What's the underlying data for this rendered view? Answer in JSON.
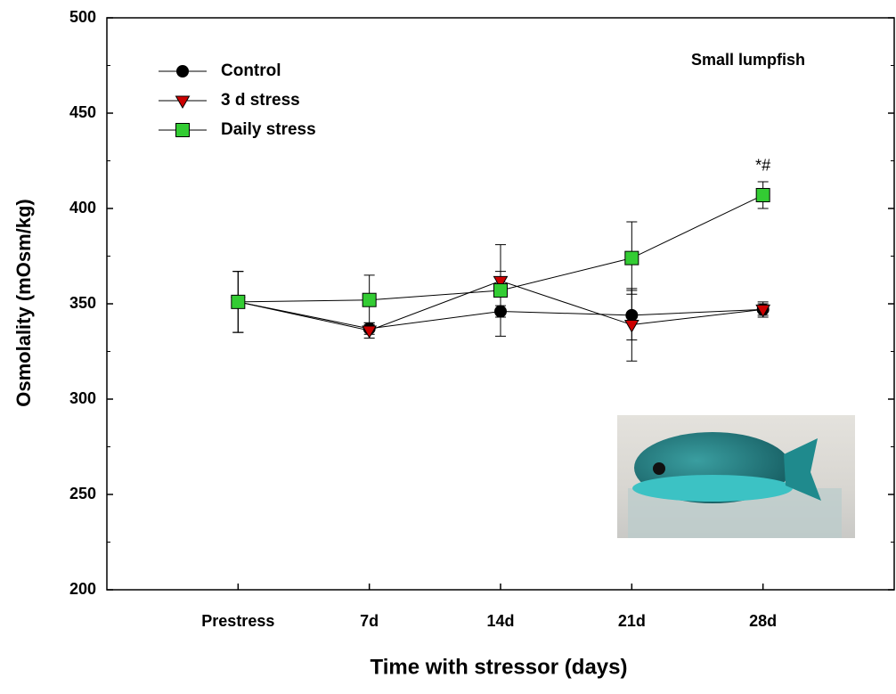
{
  "chart_data": {
    "type": "line",
    "title": "Small lumpfish",
    "x_label": "Time with stressor (days)",
    "y_label": "Osmolality (mOsm/kg)",
    "categories": [
      "Prestress",
      "7d",
      "14d",
      "21d",
      "28d"
    ],
    "series": [
      {
        "name": "Control",
        "color": "#000000",
        "marker": "circle",
        "values": [
          351,
          337,
          346,
          344,
          347
        ],
        "errors": [
          16,
          3,
          3,
          13,
          3
        ]
      },
      {
        "name": "3 d stress",
        "color": "#cc0000",
        "marker": "triangle-down",
        "values": [
          351,
          336,
          362,
          339,
          347
        ],
        "errors": [
          16,
          4,
          5,
          19,
          4
        ]
      },
      {
        "name": "Daily stress",
        "color": "#33cc33",
        "marker": "square",
        "values": [
          351,
          352,
          357,
          374,
          407
        ],
        "errors": [
          16,
          13,
          24,
          19,
          7
        ]
      }
    ],
    "annotations": [
      {
        "text": "*#",
        "category": "28d",
        "value": 422
      }
    ],
    "ylim": [
      200,
      500
    ],
    "yticks": [
      200,
      250,
      300,
      350,
      400,
      450,
      500
    ],
    "yminorticks": [
      225,
      275,
      325,
      375,
      425,
      475
    ],
    "legend": "upper-left"
  }
}
